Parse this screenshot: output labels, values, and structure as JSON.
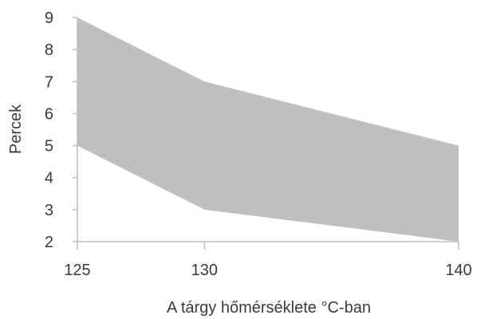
{
  "chart_data": {
    "type": "area",
    "x": [
      125,
      130,
      140
    ],
    "series": [
      {
        "role": "lower",
        "values": [
          5,
          3,
          2
        ]
      },
      {
        "role": "upper",
        "values": [
          9,
          7,
          5
        ]
      }
    ],
    "fill_color": "#bfbfbf",
    "axis_color": "#bfbfbf",
    "xlabel": "A tárgy hőmérséklete °C-ban",
    "ylabel": "Percek",
    "xlim": [
      125,
      140
    ],
    "ylim": [
      2,
      9
    ],
    "x_ticks": [
      125,
      130,
      140
    ],
    "y_ticks": [
      2,
      3,
      4,
      5,
      6,
      7,
      8,
      9
    ],
    "grid": false,
    "legend": "none"
  }
}
